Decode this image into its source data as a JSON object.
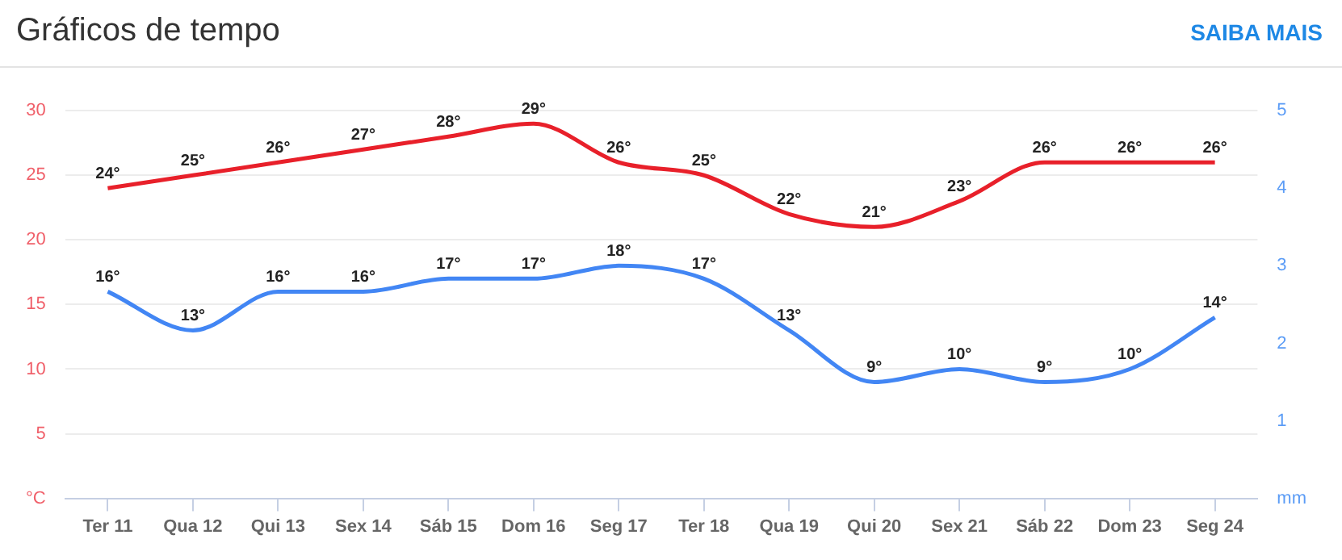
{
  "chart_data": {
    "type": "line",
    "title": "Gráficos de tempo",
    "annotations": [
      "SAIBA MAIS"
    ],
    "categories": [
      "Ter 11",
      "Qua 12",
      "Qui 13",
      "Sex 14",
      "Sáb 15",
      "Dom 16",
      "Seg 17",
      "Ter 18",
      "Qua 19",
      "Qui 20",
      "Sex 21",
      "Sáb 22",
      "Dom 23",
      "Seg 24"
    ],
    "series": [
      {
        "color": "#e8202a",
        "values": [
          24,
          25,
          26,
          27,
          28,
          29,
          26,
          25,
          22,
          21,
          23,
          26,
          26,
          26
        ],
        "value_labels": [
          "24°",
          "25°",
          "26°",
          "27°",
          "28°",
          "29°",
          "26°",
          "25°",
          "22°",
          "21°",
          "23°",
          "26°",
          "26°",
          "26°"
        ]
      },
      {
        "color": "#4286f4",
        "values": [
          16,
          13,
          16,
          16,
          17,
          17,
          18,
          17,
          13,
          9,
          10,
          9,
          10,
          14
        ],
        "value_labels": [
          "16°",
          "13°",
          "16°",
          "16°",
          "17°",
          "17°",
          "18°",
          "17°",
          "13°",
          "9°",
          "10°",
          "9°",
          "10°",
          "14°"
        ]
      }
    ],
    "ylim": [
      0,
      30
    ],
    "yticks": [
      {
        "value": 0,
        "label": "°C"
      },
      5,
      10,
      15,
      20,
      25,
      30
    ],
    "y2lim": [
      0,
      5
    ],
    "y2ticks": [
      {
        "value": 0,
        "label": "mm"
      },
      1,
      2,
      3,
      4,
      5
    ],
    "grid": "y",
    "legend": false,
    "marker": "none",
    "line_style": "solid"
  }
}
